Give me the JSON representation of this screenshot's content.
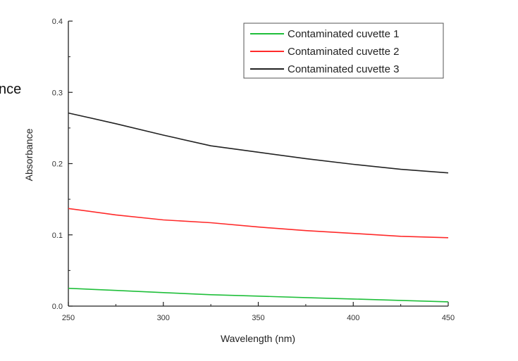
{
  "edge_fragment": "nce",
  "chart_data": {
    "type": "line",
    "title": "",
    "xlabel": "Wavelength (nm)",
    "ylabel": "Absorbance",
    "xlim": [
      250,
      450
    ],
    "ylim": [
      0.0,
      0.4
    ],
    "xticks": [
      "250",
      "300",
      "350",
      "400",
      "450"
    ],
    "yticks": [
      "0.0",
      "0.1",
      "0.2",
      "0.3",
      "0.4"
    ],
    "grid": false,
    "legend_position": "top-right",
    "x": [
      250,
      275,
      300,
      325,
      350,
      375,
      400,
      425,
      450
    ],
    "series": [
      {
        "name": "Contaminated cuvette 1",
        "color": "#1fbf3a",
        "values": [
          0.025,
          0.022,
          0.019,
          0.016,
          0.014,
          0.012,
          0.01,
          0.008,
          0.006
        ]
      },
      {
        "name": "Contaminated cuvette 2",
        "color": "#ff2a2a",
        "values": [
          0.137,
          0.128,
          0.121,
          0.117,
          0.111,
          0.106,
          0.102,
          0.098,
          0.096
        ]
      },
      {
        "name": "Contaminated cuvette 3",
        "color": "#222222",
        "values": [
          0.271,
          0.256,
          0.24,
          0.225,
          0.216,
          0.207,
          0.199,
          0.192,
          0.187
        ]
      }
    ]
  }
}
